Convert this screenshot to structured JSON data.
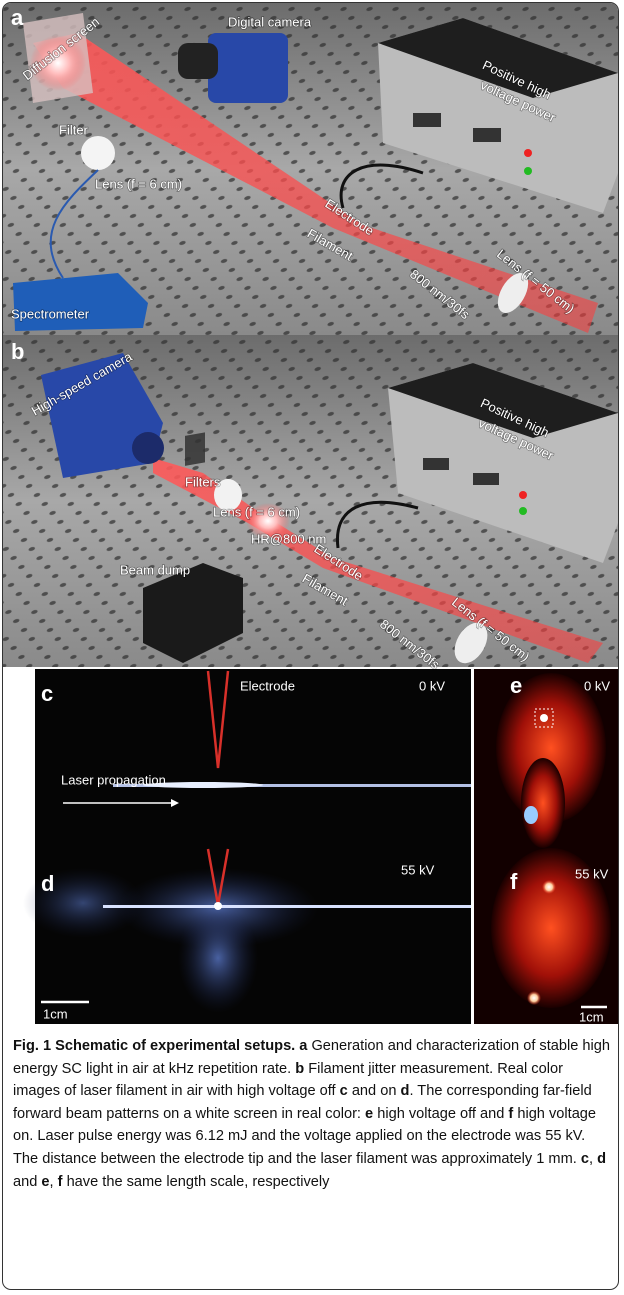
{
  "panel_a": {
    "letter": "a",
    "diffusion_screen": "Diffusion screen",
    "digital_camera": "Digital camera",
    "power": [
      "Positive high",
      "voltage power"
    ],
    "filter": "Filter",
    "lens_short": "Lens (f = 6 cm)",
    "electrode": "Electrode",
    "filament": "Filament",
    "lens_long": "Lens (f = 50 cm)",
    "laser": "800 nm/30fs",
    "spectrometer": "Spectrometer"
  },
  "panel_b": {
    "letter": "b",
    "camera": "High-speed camera",
    "filters": "Filters",
    "lens_short": "Lens (f = 6 cm)",
    "mirror": "HR@800 nm",
    "power": [
      "Positive high",
      "voltage power"
    ],
    "beam_dump": "Beam dump",
    "electrode": "Electrode",
    "filament": "Filament",
    "lens_long": "Lens (f = 50 cm)",
    "laser": "800 nm/30fs"
  },
  "panel_c": {
    "letter": "c",
    "electrode": "Electrode",
    "voltage": "0 kV",
    "propagation": "Laser propagation"
  },
  "panel_d": {
    "letter": "d",
    "voltage": "55 kV",
    "scale": "1cm"
  },
  "panel_e": {
    "letter": "e",
    "voltage": "0 kV"
  },
  "panel_f": {
    "letter": "f",
    "voltage": "55 kV",
    "scale": "1cm"
  },
  "caption": [
    {
      "text": "Fig. 1 Schematic of experimental setups. a",
      "bold": true
    },
    {
      "text": " Generation and characterization of stable high energy SC light in air at kHz repetition rate. ",
      "bold": false
    },
    {
      "text": "b",
      "bold": true
    },
    {
      "text": " Filament jitter measurement. Real color images of laser filament in air with high voltage off ",
      "bold": false
    },
    {
      "text": "c",
      "bold": true
    },
    {
      "text": " and on ",
      "bold": false
    },
    {
      "text": "d",
      "bold": true
    },
    {
      "text": ". The corresponding far-field forward beam patterns on a white screen in real color: ",
      "bold": false
    },
    {
      "text": "e",
      "bold": true
    },
    {
      "text": " high voltage off and ",
      "bold": false
    },
    {
      "text": "f",
      "bold": true
    },
    {
      "text": " high voltage on. Laser pulse energy was 6.12 mJ and the voltage applied on the electrode was 55 kV. The distance between the electrode tip and the laser filament was approximately 1 mm. ",
      "bold": false
    },
    {
      "text": "c",
      "bold": true
    },
    {
      "text": ", ",
      "bold": false
    },
    {
      "text": "d",
      "bold": true
    },
    {
      "text": " and ",
      "bold": false
    },
    {
      "text": "e",
      "bold": true
    },
    {
      "text": ", ",
      "bold": false
    },
    {
      "text": "f",
      "bold": true
    },
    {
      "text": " have the same length scale, respectively",
      "bold": false
    }
  ]
}
